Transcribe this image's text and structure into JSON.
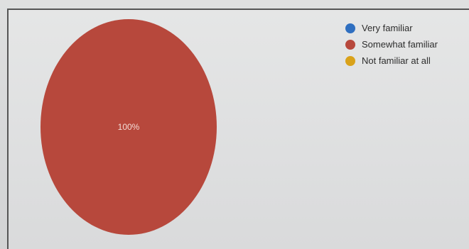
{
  "chart_data": {
    "type": "pie",
    "categories": [
      "Very familiar",
      "Somewhat familiar",
      "Not familiar at all"
    ],
    "values": [
      0,
      100,
      0
    ],
    "colors": [
      "#2f6fc0",
      "#b7483c",
      "#d9a21a"
    ],
    "data_labels": [
      "",
      "100%",
      ""
    ],
    "legend_position": "top-right",
    "title": ""
  }
}
